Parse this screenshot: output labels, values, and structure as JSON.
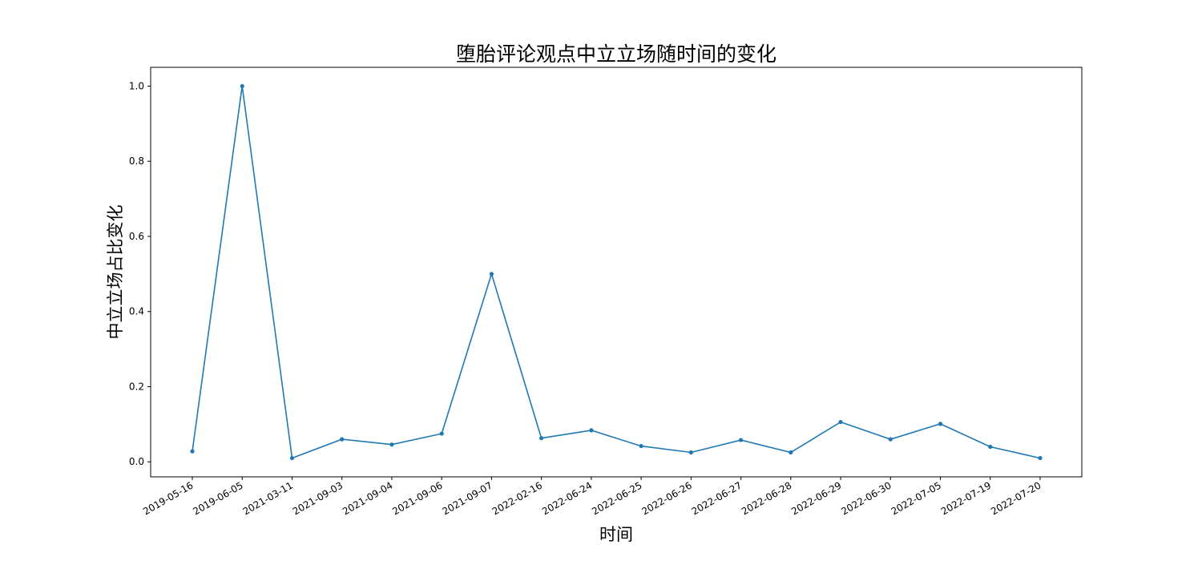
{
  "chart_data": {
    "type": "line",
    "title": "堕胎评论观点中立立场随时间的变化",
    "xlabel": "时间",
    "ylabel": "中立立场占比变化",
    "categories": [
      "2019-05-16",
      "2019-06-05",
      "2021-03-11",
      "2021-09-03",
      "2021-09-04",
      "2021-09-06",
      "2021-09-07",
      "2022-02-16",
      "2022-06-24",
      "2022-06-25",
      "2022-06-26",
      "2022-06-27",
      "2022-06-28",
      "2022-06-29",
      "2022-06-30",
      "2022-07-05",
      "2022-07-19",
      "2022-07-20"
    ],
    "series": [
      {
        "values": [
          0.028,
          1.0,
          0.01,
          0.06,
          0.046,
          0.075,
          0.5,
          0.063,
          0.084,
          0.042,
          0.025,
          0.058,
          0.025,
          0.106,
          0.06,
          0.101,
          0.04,
          0.01
        ]
      }
    ],
    "yticks": [
      "0.0",
      "0.2",
      "0.4",
      "0.6",
      "0.8",
      "1.0"
    ],
    "ylim": [
      -0.04,
      1.05
    ],
    "grid": false,
    "line_color": "#1f77b4",
    "x_tick_rotation": "30 degrees"
  }
}
